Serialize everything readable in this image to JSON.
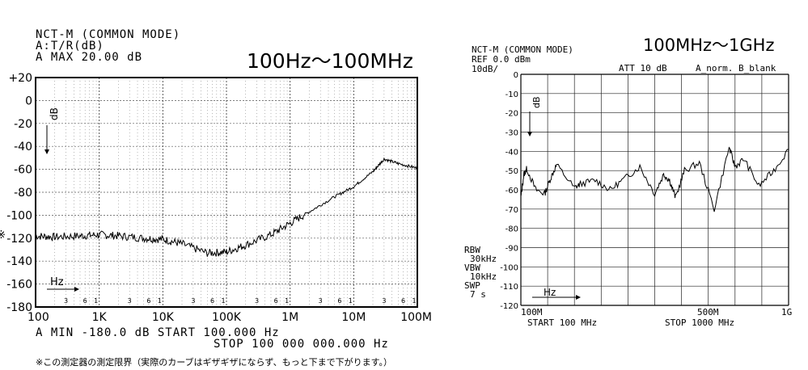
{
  "left": {
    "header": {
      "line1": "NCT-M  (COMMON MODE)",
      "line2": "A:T/R(dB)",
      "line3": "A MAX  20.00   dB"
    },
    "range_title": "100Hz～100MHz",
    "y_marker": "※",
    "y_unit": "dB",
    "x_unit": "Hz",
    "minor_labels": [
      "3",
      "6",
      "1"
    ],
    "footer": {
      "line1": "A MIN -180.0   dB  START          100.000 Hz",
      "line2": "STOP 100 000 000.000 Hz"
    },
    "note": "※この測定器の測定限界（実際のカーブはギザギザにならず、もっと下まで下がります。）"
  },
  "right": {
    "header": {
      "line1": "NCT-M  (COMMON MODE)",
      "line2": "REF 0.0 dBm",
      "line3": "10dB/",
      "att": "ATT 10 dB",
      "trace_mode": "A_norm. B_blank"
    },
    "range_title": "100MHz～1GHz",
    "y_unit": "dB",
    "x_unit": "Hz",
    "side_settings": [
      "RBW",
      "30kHz",
      "VBW",
      "10kHz",
      "SWP",
      "7 s"
    ],
    "x_axis_labels": [
      "100M",
      "500M",
      "1G"
    ],
    "footer": {
      "start": "START 100 MHz",
      "stop": "STOP 1000 MHz"
    }
  },
  "chart_data": [
    {
      "type": "line",
      "title": "100Hz～100MHz",
      "xlabel": "Hz",
      "ylabel": "dB",
      "xscale": "log",
      "xlim": [
        100,
        100000000
      ],
      "ylim": [
        -180,
        20
      ],
      "grid": true,
      "xticklabels": [
        "100",
        "1K",
        "10K",
        "100K",
        "1M",
        "10M",
        "100M"
      ],
      "yticklabels": [
        "+20",
        "0",
        "-20",
        "-40",
        "-60",
        "-80",
        "-100",
        "-120",
        "-140",
        "-160",
        "-180"
      ],
      "series": [
        {
          "name": "A",
          "x": [
            100,
            200,
            500,
            1000,
            2000,
            5000,
            10000,
            20000,
            50000,
            100000,
            200000,
            500000,
            1000000,
            2000000,
            5000000,
            10000000,
            20000000,
            30000000,
            50000000,
            100000000
          ],
          "y": [
            -118,
            -119,
            -118,
            -117,
            -118,
            -120,
            -121,
            -125,
            -133,
            -132,
            -126,
            -117,
            -107,
            -97,
            -84,
            -75,
            -62,
            -51,
            -55,
            -59
          ]
        }
      ]
    },
    {
      "type": "line",
      "title": "100MHz～1GHz",
      "xlabel": "Hz",
      "ylabel": "dB",
      "xlim": [
        100,
        1000
      ],
      "ylim": [
        -120,
        0
      ],
      "grid": true,
      "reference_level": "REF 0.0 dBm",
      "scale": "10dB/",
      "yticklabels": [
        "0",
        "-10",
        "-20",
        "-30",
        "-40",
        "-50",
        "-60",
        "-70",
        "-80",
        "-90",
        "-100",
        "-110",
        "-120"
      ],
      "series": [
        {
          "name": "A",
          "x": [
            100,
            110,
            120,
            150,
            180,
            200,
            220,
            280,
            300,
            350,
            400,
            450,
            500,
            550,
            580,
            600,
            620,
            650,
            700,
            750,
            800,
            820,
            850,
            900,
            950,
            1000
          ],
          "y": [
            -64,
            -52,
            -49,
            -60,
            -62,
            -54,
            -47,
            -59,
            -57,
            -55,
            -60,
            -54,
            -48,
            -62,
            -52,
            -55,
            -64,
            -50,
            -46,
            -70,
            -38,
            -48,
            -44,
            -58,
            -50,
            -39
          ]
        }
      ]
    }
  ]
}
